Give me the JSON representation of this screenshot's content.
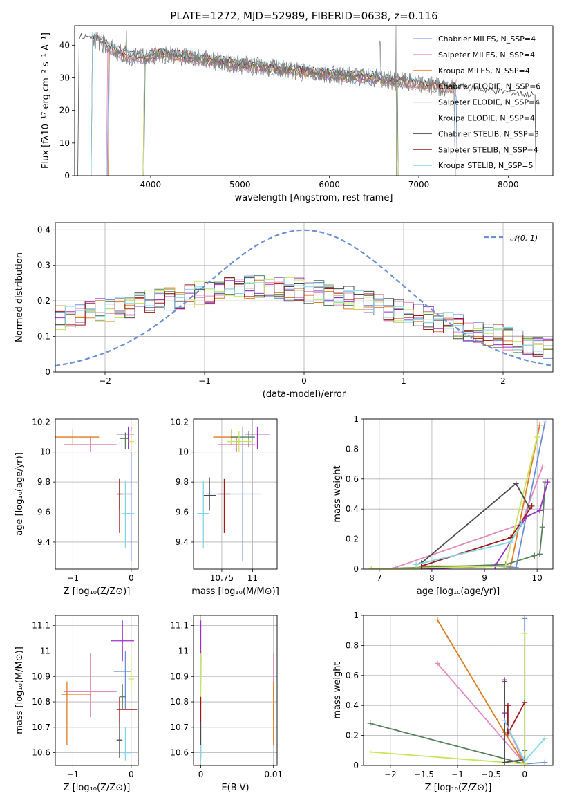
{
  "colors": [
    "#6b8fd6",
    "#e389b9",
    "#e07b1f",
    "#56825a",
    "#9b30c8",
    "#c7e55a",
    "#4a4a4a",
    "#a01818",
    "#7fd6e8"
  ],
  "chart_data": [
    {
      "id": "spectrum",
      "type": "line",
      "title": "PLATE=1272, MJD=52989, FIBERID=0638, z=0.116",
      "xlabel": "wavelength [Angstrom, rest frame]",
      "ylabel": "Flux [fλ10⁻¹⁷ erg cm⁻² s⁻¹ A⁻¹]",
      "xlim": [
        3150,
        8500
      ],
      "ylim": [
        0,
        46
      ],
      "xticks": [
        4000,
        5000,
        6000,
        7000,
        8000
      ],
      "yticks": [
        0,
        10,
        20,
        30,
        40
      ],
      "grid": false,
      "legend_position": "top-right",
      "legend": [
        "Chabrier MILES, N_SSP=4",
        "Salpeter MILES, N_SSP=4",
        "Kroupa MILES, N_SSP=4",
        "Chabrier ELODIE, N_SSP=6",
        "Salpeter ELODIE, N_SSP=4",
        "Kroupa ELODIE, N_SSP=4",
        "Chabrier STELIB, N_SSP=3",
        "Salpeter STELIB, N_SSP=4",
        "Kroupa STELIB, N_SSP=5"
      ],
      "data_series_name": "observed spectrum (grey)",
      "continuum_points": [
        [
          3350,
          42
        ],
        [
          3500,
          40
        ],
        [
          3700,
          37
        ],
        [
          3950,
          36
        ],
        [
          4100,
          37.5
        ],
        [
          4500,
          36
        ],
        [
          5000,
          34
        ],
        [
          5500,
          32.5
        ],
        [
          6000,
          31
        ],
        [
          6500,
          30
        ],
        [
          7000,
          28
        ],
        [
          7500,
          26.5
        ],
        [
          8000,
          25
        ],
        [
          8300,
          24
        ]
      ],
      "model_ranges": [
        [
          3530,
          7420
        ],
        [
          3520,
          7400
        ],
        [
          3540,
          7400
        ],
        [
          3940,
          6760
        ],
        [
          3930,
          6760
        ],
        [
          3930,
          6760
        ],
        [
          3200,
          8300
        ],
        [
          3350,
          7400
        ],
        [
          3350,
          7400
        ]
      ]
    },
    {
      "id": "residuals",
      "type": "line",
      "xlabel": "(data-model)/error",
      "ylabel": "Normed distribution",
      "xlim": [
        -2.5,
        2.5
      ],
      "ylim": [
        0,
        0.42
      ],
      "xticks": [
        -2,
        -1,
        0,
        1,
        2
      ],
      "yticks": [
        0.0,
        0.1,
        0.2,
        0.3,
        0.4
      ],
      "grid": true,
      "legend_position": "top-right",
      "legend": [
        "𝒩(0, 1)"
      ],
      "gaussian": {
        "mean": 0,
        "sigma": 1
      },
      "histogram_bins": 50,
      "histogram_mean_level": [
        0.15,
        0.17,
        0.19,
        0.21,
        0.23,
        0.24,
        0.23,
        0.21,
        0.18,
        0.15,
        0.12,
        0.09,
        0.07
      ]
    },
    {
      "id": "age-vs-Z",
      "type": "scatter",
      "xlabel": "Z [log₁₀(Z/Z⊙)]",
      "ylabel": "age  [log₁₀(age/yr)]",
      "xlim": [
        -1.3,
        0.12
      ],
      "ylim": [
        9.22,
        10.22
      ],
      "xticks": [
        -1,
        0
      ],
      "yticks": [
        9.4,
        9.6,
        9.8,
        10.0,
        10.2
      ],
      "grid": true,
      "points": [
        {
          "x": 0.0,
          "y": 9.72,
          "xerr": [
            0.02,
            0.02
          ],
          "yerr": [
            0.45,
            0.45
          ]
        },
        {
          "x": -0.7,
          "y": 10.05,
          "xerr": [
            0.45,
            0.45
          ],
          "yerr": [
            0.05,
            0.05
          ]
        },
        {
          "x": -1.0,
          "y": 10.1,
          "xerr": [
            0.3,
            0.45
          ],
          "yerr": [
            0.05,
            0.05
          ]
        },
        {
          "x": -0.1,
          "y": 10.09,
          "xerr": [
            0.1,
            0.05
          ],
          "yerr": [
            0.07,
            0.04
          ]
        },
        {
          "x": -0.05,
          "y": 10.12,
          "xerr": [
            0.2,
            0.1
          ],
          "yerr": [
            0.1,
            0.05
          ]
        },
        {
          "x": 0.0,
          "y": 10.07,
          "xerr": [
            0.05,
            0.05
          ],
          "yerr": [
            0.07,
            0.07
          ]
        },
        {
          "x": -0.2,
          "y": 9.72,
          "xerr": [
            0.05,
            0.05
          ],
          "yerr": [
            0.1,
            0.1
          ]
        },
        {
          "x": -0.2,
          "y": 9.72,
          "xerr": [
            0.05,
            0.2
          ],
          "yerr": [
            0.26,
            0.1
          ]
        },
        {
          "x": -0.1,
          "y": 9.59,
          "xerr": [
            0.05,
            0.15
          ],
          "yerr": [
            0.23,
            0.22
          ]
        }
      ]
    },
    {
      "id": "age-vs-mass",
      "type": "scatter",
      "xlabel": "mass [log₁₀(M/M⊙)]",
      "ylabel": "",
      "xlim": [
        10.52,
        11.2
      ],
      "ylim": [
        9.22,
        10.22
      ],
      "xticks": [
        10.75,
        11.0
      ],
      "yticks": [
        9.4,
        9.6,
        9.8,
        10.0,
        10.2
      ],
      "grid": true,
      "points": [
        {
          "x": 10.92,
          "y": 9.72,
          "xerr": [
            0.3,
            0.15
          ],
          "yerr": [
            0.45,
            0.45
          ]
        },
        {
          "x": 10.87,
          "y": 10.05,
          "xerr": [
            0.15,
            0.15
          ],
          "yerr": [
            0.05,
            0.05
          ]
        },
        {
          "x": 10.83,
          "y": 10.1,
          "xerr": [
            0.15,
            0.05
          ],
          "yerr": [
            0.05,
            0.05
          ]
        },
        {
          "x": 10.97,
          "y": 10.1,
          "xerr": [
            0.15,
            0.05
          ],
          "yerr": [
            0.07,
            0.04
          ]
        },
        {
          "x": 11.04,
          "y": 10.12,
          "xerr": [
            0.1,
            0.1
          ],
          "yerr": [
            0.1,
            0.05
          ]
        },
        {
          "x": 10.89,
          "y": 10.07,
          "xerr": [
            0.1,
            0.1
          ],
          "yerr": [
            0.07,
            0.07
          ]
        },
        {
          "x": 10.65,
          "y": 9.71,
          "xerr": [
            0.05,
            0.05
          ],
          "yerr": [
            0.1,
            0.12
          ]
        },
        {
          "x": 10.77,
          "y": 9.72,
          "xerr": [
            0.05,
            0.05
          ],
          "yerr": [
            0.26,
            0.1
          ]
        },
        {
          "x": 10.6,
          "y": 9.59,
          "xerr": [
            0.05,
            0.05
          ],
          "yerr": [
            0.23,
            0.22
          ]
        }
      ]
    },
    {
      "id": "weight-vs-age",
      "type": "line",
      "xlabel": "age  [log₁₀(age/yr)]",
      "ylabel": "mass weight",
      "xlim": [
        6.7,
        10.3
      ],
      "ylim": [
        0,
        1
      ],
      "xticks": [
        7,
        8,
        9,
        10
      ],
      "yticks": [
        0.0,
        0.2,
        0.4,
        0.6,
        0.8,
        1.0
      ],
      "grid": true,
      "series": [
        {
          "x": [
            7.8,
            9.2,
            9.6,
            10.15
          ],
          "y": [
            0.01,
            0.02,
            0.01,
            0.98
          ]
        },
        {
          "x": [
            7.3,
            9.7,
            10.1
          ],
          "y": [
            0.01,
            0.3,
            0.68
          ]
        },
        {
          "x": [
            7.8,
            9.5,
            10.05
          ],
          "y": [
            0.02,
            0.02,
            0.96
          ]
        },
        {
          "x": [
            6.85,
            9.4,
            9.95,
            10.05,
            10.1,
            10.15
          ],
          "y": [
            0.0,
            0.03,
            0.09,
            0.1,
            0.28,
            0.58
          ]
        },
        {
          "x": [
            7.8,
            9.2,
            9.8,
            10.05,
            10.2
          ],
          "y": [
            0.0,
            0.02,
            0.35,
            0.39,
            0.58
          ]
        },
        {
          "x": [
            6.85,
            9.4,
            10.0
          ],
          "y": [
            0.0,
            0.02,
            0.88
          ]
        },
        {
          "x": [
            7.8,
            9.6,
            9.85
          ],
          "y": [
            0.04,
            0.57,
            0.41
          ]
        },
        {
          "x": [
            7.8,
            9.5,
            9.9
          ],
          "y": [
            0.02,
            0.21,
            0.42
          ]
        },
        {
          "x": [
            7.7,
            9.5,
            9.7
          ],
          "y": [
            0.03,
            0.18,
            0.3
          ]
        }
      ]
    },
    {
      "id": "mass-vs-Z",
      "type": "scatter",
      "xlabel": "Z [log₁₀(Z/Z⊙)]",
      "ylabel": "mass [log₁₀(M/M⊙)]",
      "xlim": [
        -1.3,
        0.12
      ],
      "ylim": [
        10.55,
        11.14
      ],
      "xticks": [
        -1,
        0
      ],
      "yticks": [
        10.6,
        10.7,
        10.8,
        10.9,
        11.0,
        11.1
      ],
      "grid": true,
      "points": [
        {
          "x": -0.1,
          "y": 10.92,
          "xerr": [
            0.2,
            0.1
          ],
          "yerr": [
            0.15,
            0.08
          ]
        },
        {
          "x": -0.7,
          "y": 10.84,
          "xerr": [
            0.45,
            0.45
          ],
          "yerr": [
            0.1,
            0.15
          ]
        },
        {
          "x": -1.1,
          "y": 10.83,
          "xerr": [
            0.1,
            0.4
          ],
          "yerr": [
            0.2,
            0.05
          ]
        },
        {
          "x": -0.15,
          "y": 10.82,
          "xerr": [
            0.05,
            0.05
          ],
          "yerr": [
            0.05,
            0.05
          ]
        },
        {
          "x": -0.15,
          "y": 11.04,
          "xerr": [
            0.2,
            0.2
          ],
          "yerr": [
            0.08,
            0.08
          ]
        },
        {
          "x": 0.0,
          "y": 10.89,
          "xerr": [
            0.05,
            0.05
          ],
          "yerr": [
            0.05,
            0.1
          ]
        },
        {
          "x": -0.2,
          "y": 10.65,
          "xerr": [
            0.05,
            0.05
          ],
          "yerr": [
            0.07,
            0.07
          ]
        },
        {
          "x": -0.2,
          "y": 10.77,
          "xerr": [
            0.05,
            0.3
          ],
          "yerr": [
            0.05,
            0.05
          ]
        },
        {
          "x": -0.1,
          "y": 10.6,
          "xerr": [
            0.05,
            0.1
          ],
          "yerr": [
            0.03,
            0.1
          ]
        }
      ]
    },
    {
      "id": "mass-vs-EBV",
      "type": "scatter",
      "xlabel": "E(B-V)",
      "ylabel": "",
      "xlim": [
        -0.001,
        0.0105
      ],
      "ylim": [
        10.55,
        11.14
      ],
      "xticks": [
        0.0,
        0.01
      ],
      "yticks": [
        10.6,
        10.7,
        10.8,
        10.9,
        11.0,
        11.1
      ],
      "grid": true,
      "points": [
        {
          "x": 0.0,
          "y": 10.92,
          "xerr": [
            0.0,
            0.0
          ],
          "yerr": [
            0.05,
            0.05
          ]
        },
        {
          "x": 0.01,
          "y": 10.84,
          "xerr": [
            0.0,
            0.0
          ],
          "yerr": [
            0.1,
            0.15
          ]
        },
        {
          "x": 0.01,
          "y": 10.83,
          "xerr": [
            0.0,
            0.0
          ],
          "yerr": [
            0.2,
            0.05
          ]
        },
        {
          "x": 0.0,
          "y": 10.95,
          "xerr": [
            0.0,
            0.0
          ],
          "yerr": [
            0.05,
            0.05
          ]
        },
        {
          "x": 0.0,
          "y": 11.04,
          "xerr": [
            0.0,
            0.0
          ],
          "yerr": [
            0.08,
            0.08
          ]
        },
        {
          "x": 0.0,
          "y": 10.89,
          "xerr": [
            0.0,
            0.0
          ],
          "yerr": [
            0.1,
            0.1
          ]
        },
        {
          "x": 0.0,
          "y": 10.65,
          "xerr": [
            0.0,
            0.0
          ],
          "yerr": [
            0.07,
            0.07
          ]
        },
        {
          "x": 0.0,
          "y": 10.77,
          "xerr": [
            0.0,
            0.0
          ],
          "yerr": [
            0.05,
            0.05
          ]
        },
        {
          "x": 0.0,
          "y": 10.6,
          "xerr": [
            0.0,
            0.0
          ],
          "yerr": [
            0.03,
            0.03
          ]
        }
      ]
    },
    {
      "id": "weight-vs-Z",
      "type": "line",
      "xlabel": "Z [log₁₀(Z/Z⊙)]",
      "ylabel": "mass weight",
      "xlim": [
        -2.4,
        0.42
      ],
      "ylim": [
        0,
        1
      ],
      "xticks": [
        -2.0,
        -1.5,
        -1.0,
        -0.5,
        0.0
      ],
      "yticks": [
        0.0,
        0.2,
        0.4,
        0.6,
        0.8,
        1.0
      ],
      "grid": true,
      "series": [
        {
          "x": [
            0.3,
            0.0,
            0.0
          ],
          "y": [
            0.02,
            0.01,
            0.98
          ]
        },
        {
          "x": [
            -1.3,
            0.0,
            -0.3
          ],
          "y": [
            0.68,
            0.01,
            0.3
          ]
        },
        {
          "x": [
            -1.3,
            -0.3,
            0.0
          ],
          "y": [
            0.97,
            0.22,
            0.01
          ]
        },
        {
          "x": [
            -2.3,
            0.0,
            0.0
          ],
          "y": [
            0.28,
            0.01,
            0.1
          ]
        },
        {
          "x": [
            -0.3,
            -0.3,
            -0.3
          ],
          "y": [
            0.02,
            0.35,
            0.56
          ]
        },
        {
          "x": [
            -2.3,
            0.0,
            0.0
          ],
          "y": [
            0.09,
            0.01,
            0.88
          ]
        },
        {
          "x": [
            -0.3,
            -0.3,
            0.0
          ],
          "y": [
            0.57,
            0.02,
            0.04
          ]
        },
        {
          "x": [
            -0.25,
            -0.25,
            0.0
          ],
          "y": [
            0.4,
            0.21,
            0.42
          ]
        },
        {
          "x": [
            0.3,
            0.0,
            -0.3
          ],
          "y": [
            0.18,
            0.03,
            0.3
          ]
        }
      ]
    }
  ]
}
